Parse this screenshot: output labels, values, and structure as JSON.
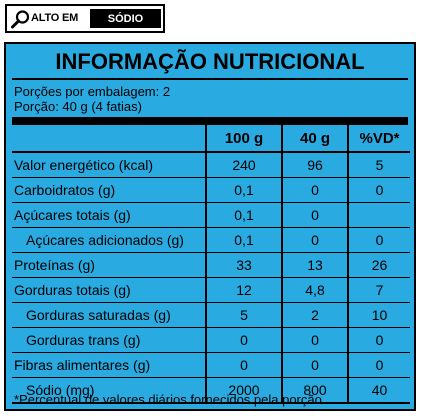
{
  "badge": {
    "alto_label": "ALTO EM",
    "nutrient_label": "SÓDIO",
    "icon": "magnifier-icon"
  },
  "table": {
    "title": "INFORMAÇÃO NUTRICIONAL",
    "servings_line": "Porções por embalagem: 2",
    "portion_line": "Porção: 40 g (4 fatias)",
    "headers": [
      "100 g",
      "40 g",
      "%VD*"
    ],
    "rows": [
      {
        "name": "Valor energético (kcal)",
        "v100": "240",
        "v40": "96",
        "vd": "5"
      },
      {
        "name": "Carboidratos (g)",
        "v100": "0,1",
        "v40": "0",
        "vd": "0"
      },
      {
        "name": "Açúcares totais (g)",
        "v100": "0,1",
        "v40": "0",
        "vd": ""
      },
      {
        "name": "Açúcares adicionados (g)",
        "v100": "0,1",
        "v40": "0",
        "vd": "0"
      },
      {
        "name": "Proteínas (g)",
        "v100": "33",
        "v40": "13",
        "vd": "26"
      },
      {
        "name": "Gorduras totais (g)",
        "v100": "12",
        "v40": "4,8",
        "vd": "7"
      },
      {
        "name": "Gorduras saturadas (g)",
        "v100": "5",
        "v40": "2",
        "vd": "10"
      },
      {
        "name": "Gorduras trans (g)",
        "v100": "0",
        "v40": "0",
        "vd": "0"
      },
      {
        "name": "Fibras alimentares (g)",
        "v100": "0",
        "v40": "0",
        "vd": "0"
      },
      {
        "name": "Sódio (mg)",
        "v100": "2000",
        "v40": "800",
        "vd": "40"
      }
    ],
    "footnote": "*Percentual de valores diários fornecidos pela porção."
  },
  "colors": {
    "panel_background": "#29aae1",
    "ink": "#000000"
  }
}
